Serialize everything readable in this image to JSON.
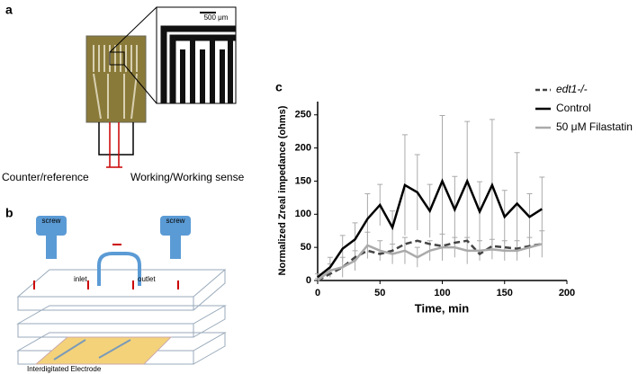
{
  "panels": {
    "a": {
      "label": "a",
      "scale_bar": "500 μm",
      "left_label": "Counter/reference",
      "right_label": "Working/Working sense"
    },
    "b": {
      "label": "b",
      "screw_left": "screw",
      "screw_right": "screw",
      "inlet": "inlet",
      "outlet": "outlet",
      "caption": "Interdigitated Electrode"
    }
  },
  "chart_data": {
    "type": "line",
    "panel_label": "c",
    "x_label": "Time, min",
    "y_label": "Normalized Zreal impedance (ohms)",
    "x": [
      0,
      10,
      20,
      30,
      40,
      50,
      60,
      70,
      80,
      90,
      100,
      110,
      120,
      130,
      140,
      150,
      160,
      170,
      180
    ],
    "series": [
      {
        "name": "edt1-/-",
        "color": "#444444",
        "dash": true,
        "values": [
          0,
          10,
          20,
          35,
          45,
          40,
          45,
          55,
          60,
          55,
          52,
          57,
          60,
          40,
          52,
          50,
          48,
          52,
          55
        ]
      },
      {
        "name": "Control",
        "color": "#000000",
        "values": [
          5,
          20,
          48,
          62,
          93,
          114,
          80,
          144,
          133,
          105,
          150,
          107,
          150,
          104,
          144,
          96,
          116,
          96,
          108
        ],
        "errors": [
          5,
          15,
          20,
          25,
          38,
          31,
          25,
          76,
          57,
          40,
          99,
          50,
          90,
          45,
          99,
          40,
          77,
          35,
          48
        ]
      },
      {
        "name": "50 μM Filastatin",
        "color": "#aaaaaa",
        "values": [
          0,
          15,
          20,
          30,
          53,
          45,
          40,
          45,
          35,
          45,
          50,
          50,
          45,
          45,
          47,
          45,
          45,
          50,
          55
        ],
        "errors": [
          3,
          10,
          15,
          15,
          20,
          15,
          15,
          20,
          15,
          15,
          20,
          15,
          20,
          15,
          15,
          15,
          15,
          15,
          20
        ]
      }
    ],
    "xlim": [
      0,
      200
    ],
    "xticks": [
      0,
      50,
      100,
      150,
      200
    ],
    "ylim": [
      0,
      270
    ],
    "yticks": [
      0,
      50,
      100,
      150,
      200,
      250
    ]
  }
}
